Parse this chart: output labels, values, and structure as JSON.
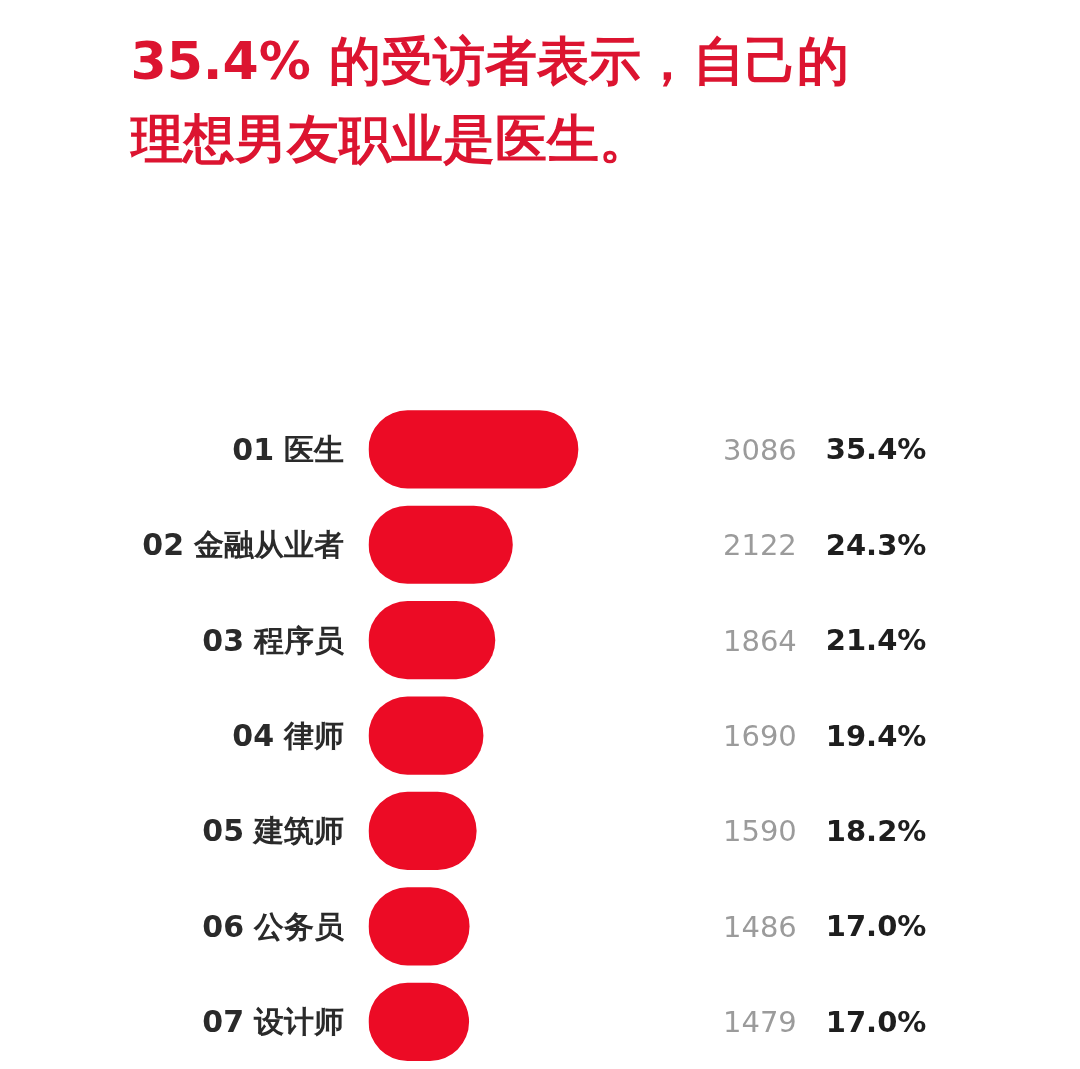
{
  "chart_data": {
    "type": "bar",
    "orientation": "horizontal",
    "title": "35.4% 的受访者表示，自己的理想男友职业是医生。",
    "categories": [
      "01 医生",
      "02 金融从业者",
      "03 程序员",
      "04 律师",
      "05 建筑师",
      "06 公务员",
      "07 设计师"
    ],
    "values": [
      3086,
      2122,
      1864,
      1690,
      1590,
      1486,
      1479
    ],
    "color": "#ec0b25",
    "data_labels": true,
    "annotations": [
      "35.4%",
      "24.3%",
      "21.4%",
      "19.4%",
      "18.2%",
      "17.0%",
      "17.0%"
    ],
    "tick_labels": "y"
  }
}
